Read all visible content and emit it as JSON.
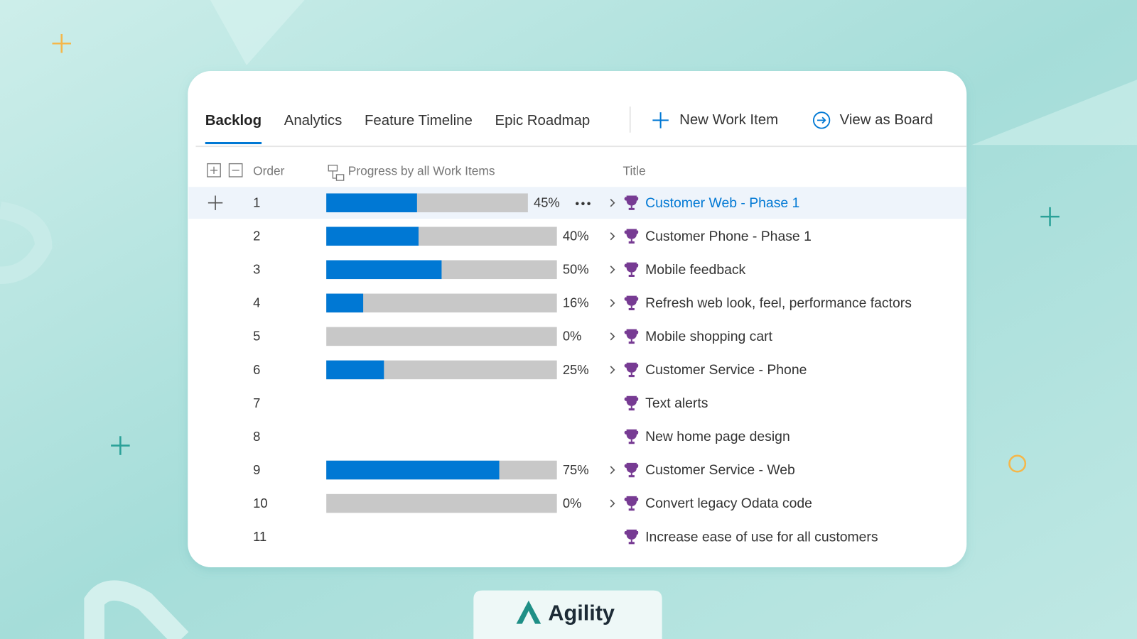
{
  "tabs": [
    "Backlog",
    "Analytics",
    "Feature Timeline",
    "Epic Roadmap"
  ],
  "selected_tab": 0,
  "actions": [
    "New Work Item",
    "View as Board"
  ],
  "columns": {
    "order": "Order",
    "progress": "Progress by all Work Items",
    "title": "Title"
  },
  "progress_lim": [
    0,
    100
  ],
  "selected_row": 0,
  "rows": [
    {
      "order": 1,
      "progress": 45,
      "progress_label": "45%",
      "title": "Customer Web - Phase 1"
    },
    {
      "order": 2,
      "progress": 40,
      "progress_label": "40%",
      "title": "Customer Phone - Phase 1"
    },
    {
      "order": 3,
      "progress": 50,
      "progress_label": "50%",
      "title": "Mobile feedback"
    },
    {
      "order": 4,
      "progress": 16,
      "progress_label": "16%",
      "title": "Refresh web look, feel, performance factors"
    },
    {
      "order": 5,
      "progress": 0,
      "progress_label": "0%",
      "title": "Mobile shopping cart"
    },
    {
      "order": 6,
      "progress": 25,
      "progress_label": "25%",
      "title": "Customer Service - Phone"
    },
    {
      "order": 7,
      "progress": null,
      "title": "Text alerts"
    },
    {
      "order": 8,
      "progress": null,
      "title": "New home page design"
    },
    {
      "order": 9,
      "progress": 75,
      "progress_label": "75%",
      "title": "Customer Service - Web"
    },
    {
      "order": 10,
      "progress": 0,
      "progress_label": "0%",
      "title": "Convert legacy Odata code"
    },
    {
      "order": 11,
      "progress": null,
      "title": "Increase ease of use for all customers"
    }
  ],
  "brand": "Agility"
}
